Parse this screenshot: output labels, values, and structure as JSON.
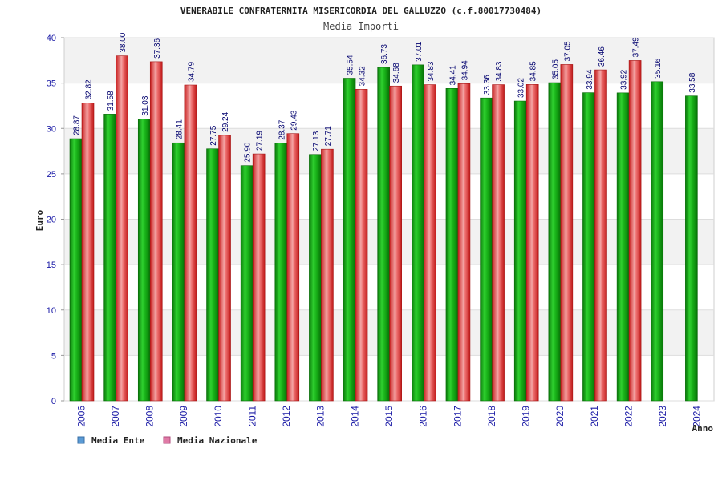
{
  "chart_data": {
    "type": "bar",
    "title": "VENERABILE CONFRATERNITA MISERICORDIA DEL GALLUZZO (c.f.80017730484)",
    "subtitle": "Media Importi",
    "ylabel": "Euro",
    "xlabel": "Anno",
    "ylim": [
      0,
      40
    ],
    "yticks": [
      0,
      5,
      10,
      15,
      20,
      25,
      30,
      35,
      40
    ],
    "categories": [
      "2006",
      "2007",
      "2008",
      "2009",
      "2010",
      "2011",
      "2012",
      "2013",
      "2014",
      "2015",
      "2016",
      "2017",
      "2018",
      "2019",
      "2020",
      "2021",
      "2022",
      "2023",
      "2024"
    ],
    "series": [
      {
        "name": "Media Ente",
        "color": "#22b422",
        "values": [
          28.87,
          31.58,
          31.03,
          28.41,
          27.75,
          25.9,
          28.37,
          27.13,
          35.54,
          36.73,
          37.01,
          34.41,
          33.36,
          33.02,
          35.05,
          33.94,
          33.92,
          35.16,
          33.58
        ],
        "labels": [
          "28.87",
          "31.58",
          "31.03",
          "28.41",
          "27.75",
          "25.90",
          "28.37",
          "27.13",
          "35.54",
          "36.73",
          "37.01",
          "34.41",
          "33.36",
          "33.02",
          "35.05",
          "33.94",
          "33.92",
          "35.16",
          "33.58"
        ]
      },
      {
        "name": "Media Nazionale",
        "color": "#e03c3c",
        "values": [
          32.82,
          38.0,
          37.36,
          34.79,
          29.24,
          27.19,
          29.43,
          27.71,
          34.32,
          34.68,
          34.83,
          34.94,
          34.83,
          34.85,
          37.05,
          36.46,
          37.49,
          null,
          null
        ],
        "labels": [
          "32.82",
          "38.00",
          "37.36",
          "34.79",
          "29.24",
          "27.19",
          "29.43",
          "27.71",
          "34.32",
          "34.68",
          "34.83",
          "34.94",
          "34.83",
          "34.85",
          "37.05",
          "36.46",
          "37.49",
          "",
          ""
        ]
      }
    ],
    "legend": {
      "position": "bottom-left",
      "items": [
        {
          "label": "Media Ente",
          "swatch": "#5b9bd5"
        },
        {
          "label": "Media Nazionale",
          "swatch": "#e07aa6"
        }
      ]
    },
    "grid": true
  }
}
